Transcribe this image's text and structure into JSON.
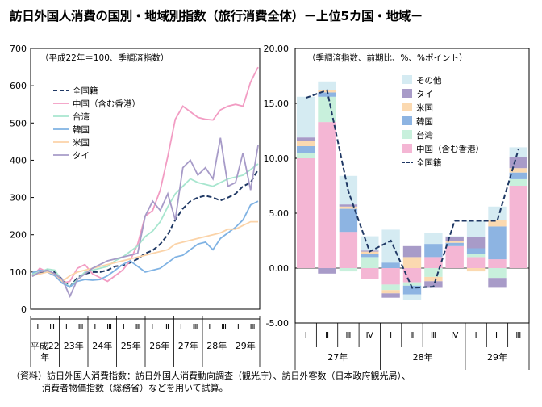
{
  "title": "訪日外国人消費の国別・地域別指数（旅行消費全体）－上位5カ国・地域－",
  "note": {
    "line1": "（資料）訪日外国人消費指数：訪日外国人消費動向調査（観光庁）、訪日外客数（日本政府観光局）、",
    "line2": "消費者物価指数（総務省）などを用いて試算。"
  },
  "chart_data": [
    {
      "type": "line",
      "subtitle": "（平成22年＝100、季調済指数）",
      "ylim": [
        0,
        700
      ],
      "yticks": [
        "0",
        "100",
        "200",
        "300",
        "400",
        "500",
        "600",
        "700"
      ],
      "grid": false,
      "legend_placement": "top-left",
      "x_quarter_labels": [
        "Ⅰ",
        "Ⅲ",
        "Ⅰ",
        "Ⅲ",
        "Ⅰ",
        "Ⅲ",
        "Ⅰ",
        "Ⅲ",
        "Ⅰ",
        "Ⅲ",
        "Ⅰ",
        "Ⅲ",
        "Ⅰ",
        "Ⅲ",
        "Ⅰ",
        "Ⅲ"
      ],
      "x_year_labels": [
        "平成22",
        "年",
        "23年",
        "24年",
        "25年",
        "26年",
        "27年",
        "28年",
        "29年"
      ],
      "x_count": 31,
      "series": [
        {
          "name": "全国籍",
          "color": "#1f3864",
          "dash": true,
          "values": [
            92,
            97,
            103,
            100,
            80,
            60,
            85,
            95,
            100,
            100,
            105,
            115,
            118,
            125,
            135,
            150,
            158,
            175,
            200,
            240,
            270,
            290,
            300,
            305,
            300,
            292,
            300,
            310,
            330,
            340,
            375
          ]
        },
        {
          "name": "中国（含む香港）",
          "color": "#f29cc3",
          "values": [
            88,
            110,
            100,
            90,
            70,
            75,
            110,
            120,
            95,
            85,
            75,
            90,
            105,
            130,
            175,
            250,
            265,
            320,
            410,
            510,
            545,
            530,
            515,
            510,
            508,
            535,
            545,
            550,
            545,
            610,
            650
          ]
        },
        {
          "name": "台湾",
          "color": "#a8e6cf",
          "values": [
            95,
            100,
            108,
            105,
            75,
            60,
            80,
            100,
            105,
            110,
            115,
            130,
            140,
            155,
            170,
            195,
            210,
            235,
            275,
            310,
            330,
            350,
            340,
            335,
            330,
            340,
            350,
            355,
            360,
            375,
            390
          ]
        },
        {
          "name": "韓国",
          "color": "#7fb2e3",
          "values": [
            98,
            105,
            100,
            90,
            70,
            60,
            75,
            80,
            78,
            80,
            90,
            105,
            120,
            130,
            115,
            100,
            105,
            110,
            125,
            140,
            145,
            160,
            175,
            180,
            160,
            190,
            205,
            220,
            240,
            280,
            290
          ]
        },
        {
          "name": "米国",
          "color": "#fbd3a8",
          "values": [
            90,
            95,
            100,
            95,
            75,
            90,
            100,
            105,
            110,
            115,
            120,
            125,
            130,
            135,
            140,
            145,
            150,
            155,
            160,
            175,
            180,
            185,
            190,
            195,
            200,
            205,
            215,
            215,
            225,
            235,
            235
          ]
        },
        {
          "name": "タイ",
          "color": "#a79bc8",
          "values": [
            88,
            100,
            105,
            95,
            80,
            35,
            80,
            95,
            110,
            120,
            130,
            135,
            140,
            145,
            150,
            250,
            290,
            265,
            310,
            240,
            380,
            400,
            360,
            380,
            350,
            460,
            330,
            340,
            420,
            320,
            440
          ]
        }
      ]
    },
    {
      "type": "bar",
      "stacked": true,
      "subtitle": "（季調済指数、前期比、%、%ポイント）",
      "ylim": [
        -5,
        20
      ],
      "yticks": [
        "-5.00",
        "0.00",
        "5.00",
        "10.00",
        "15.00",
        "20.00"
      ],
      "grid": false,
      "legend_placement": "top-right",
      "categories": [
        "Ⅰ",
        "Ⅱ",
        "Ⅲ",
        "Ⅳ",
        "Ⅰ",
        "Ⅱ",
        "Ⅲ",
        "Ⅳ",
        "Ⅰ",
        "Ⅱ",
        "Ⅲ"
      ],
      "year_labels": [
        "27年",
        "28年",
        "29年"
      ],
      "series": [
        {
          "name": "中国（含む香港）",
          "color": "#f4b6d4",
          "values": [
            10.0,
            13.3,
            3.3,
            -1.0,
            -1.5,
            -1.3,
            1.0,
            2.0,
            1.0,
            0.8,
            7.5
          ]
        },
        {
          "name": "台湾",
          "color": "#c8f0dc",
          "values": [
            0.5,
            2.3,
            -0.3,
            1.0,
            -0.5,
            -0.3,
            -0.8,
            0.0,
            0.3,
            -0.9,
            0.6
          ]
        },
        {
          "name": "韓国",
          "color": "#8db4e2",
          "values": [
            0.6,
            0.4,
            2.1,
            0.3,
            0.5,
            -0.8,
            1.2,
            0.3,
            0.5,
            3.0,
            0.6
          ]
        },
        {
          "name": "米国",
          "color": "#fbd9b0",
          "values": [
            0.5,
            0.2,
            0.2,
            0.2,
            -0.3,
            1.0,
            -0.4,
            0.2,
            -0.3,
            0.6,
            0.4
          ]
        },
        {
          "name": "タイ",
          "color": "#a89bc8",
          "values": [
            0.3,
            -0.5,
            0.2,
            0.1,
            -0.4,
            1.0,
            -0.6,
            0.3,
            1.0,
            -0.9,
            1.0
          ]
        },
        {
          "name": "その他",
          "color": "#d5ebf2",
          "values": [
            3.7,
            0.8,
            2.6,
            1.3,
            3.0,
            -0.5,
            1.0,
            0.1,
            1.5,
            1.2,
            0.9
          ]
        }
      ],
      "line": {
        "name": "全国籍",
        "color": "#1f3864",
        "dash": true,
        "values": [
          15.5,
          16.2,
          7.0,
          1.5,
          2.5,
          -1.8,
          -1.7,
          4.3,
          4.3,
          4.3,
          10.8
        ]
      }
    }
  ]
}
